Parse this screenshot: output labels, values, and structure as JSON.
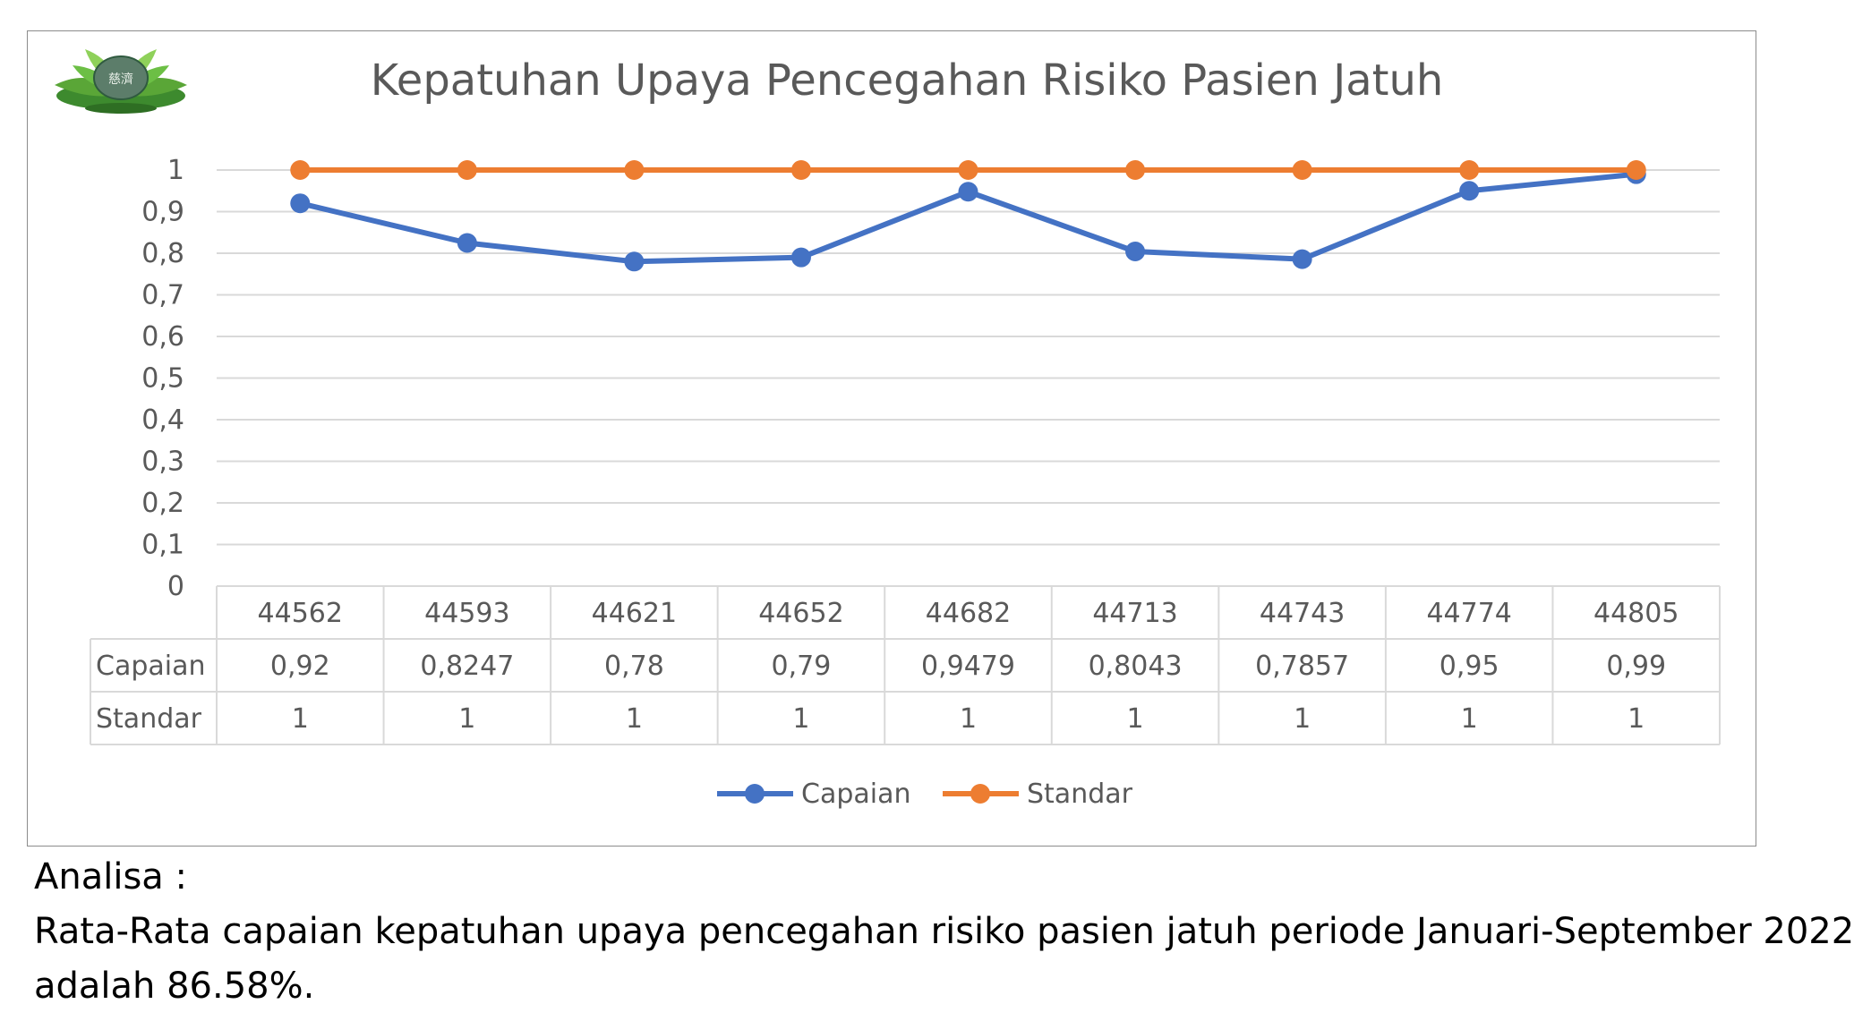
{
  "chart_data": {
    "type": "line",
    "title": "Kepatuhan Upaya Pencegahan Risiko Pasien Jatuh",
    "categories": [
      "44562",
      "44593",
      "44621",
      "44652",
      "44682",
      "44713",
      "44743",
      "44774",
      "44805"
    ],
    "series": [
      {
        "name": "Capaian",
        "color": "#4472c4",
        "values": [
          0.92,
          0.8247,
          0.78,
          0.79,
          0.9479,
          0.8043,
          0.7857,
          0.95,
          0.99
        ],
        "labels": [
          "0,92",
          "0,8247",
          "0,78",
          "0,79",
          "0,9479",
          "0,8043",
          "0,7857",
          "0,95",
          "0,99"
        ]
      },
      {
        "name": "Standar",
        "color": "#ed7d31",
        "values": [
          1,
          1,
          1,
          1,
          1,
          1,
          1,
          1,
          1
        ],
        "labels": [
          "1",
          "1",
          "1",
          "1",
          "1",
          "1",
          "1",
          "1",
          "1"
        ]
      }
    ],
    "ylim": [
      0,
      1
    ],
    "yticks": [
      "0",
      "0,1",
      "0,2",
      "0,3",
      "0,4",
      "0,5",
      "0,6",
      "0,7",
      "0,8",
      "0,9",
      "1"
    ],
    "grid": true,
    "data_table": true,
    "legend": "bottom"
  },
  "analysis": {
    "heading": "Analisa :",
    "line1": "Rata-Rata capaian kepatuhan upaya pencegahan risiko pasien jatuh periode Januari-September 2022",
    "line2": "adalah 86.58%."
  },
  "logo": {
    "icon": "lotus-emblem-icon",
    "text": "慈濟"
  }
}
